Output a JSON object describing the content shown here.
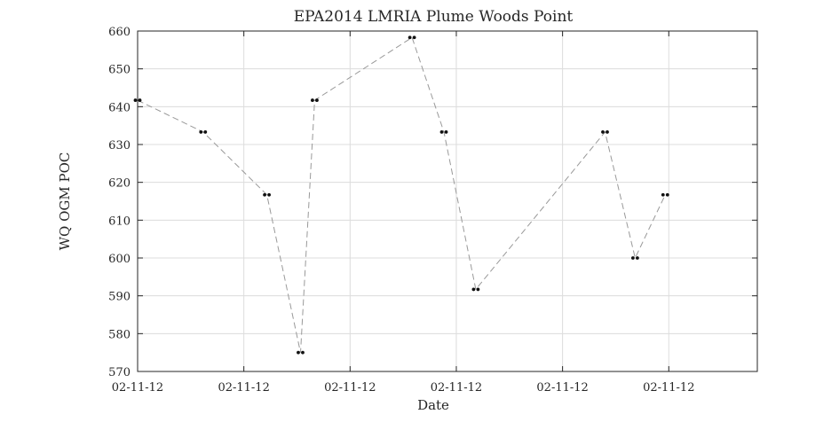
{
  "chart_data": {
    "type": "line",
    "title": "EPA2014 LMRIA Plume Woods Point",
    "xlabel": "Date",
    "ylabel": "WQ OGM POC",
    "x_tick_labels": [
      "02-11-12",
      "02-11-12",
      "02-11-12",
      "02-11-12",
      "02-11-12",
      "02-11-12"
    ],
    "y_ticks": [
      570,
      580,
      590,
      600,
      610,
      620,
      630,
      640,
      650,
      660
    ],
    "ylim": [
      570,
      660
    ],
    "xlim": [
      0,
      35
    ],
    "grid": true,
    "line_style": "dashed",
    "line_color": "#999999",
    "marker_color": "#111111",
    "x_tick_positions": [
      0,
      6,
      12,
      18,
      24,
      30
    ],
    "series": [
      {
        "x": [
          0,
          3.7,
          7.3,
          9.2,
          10,
          15.5,
          17.3,
          19.1,
          26.4,
          28.1,
          29.8
        ],
        "values": [
          641.7,
          633.3,
          616.7,
          575,
          641.7,
          658.3,
          633.3,
          591.7,
          633.3,
          600,
          616.7
        ]
      }
    ]
  }
}
